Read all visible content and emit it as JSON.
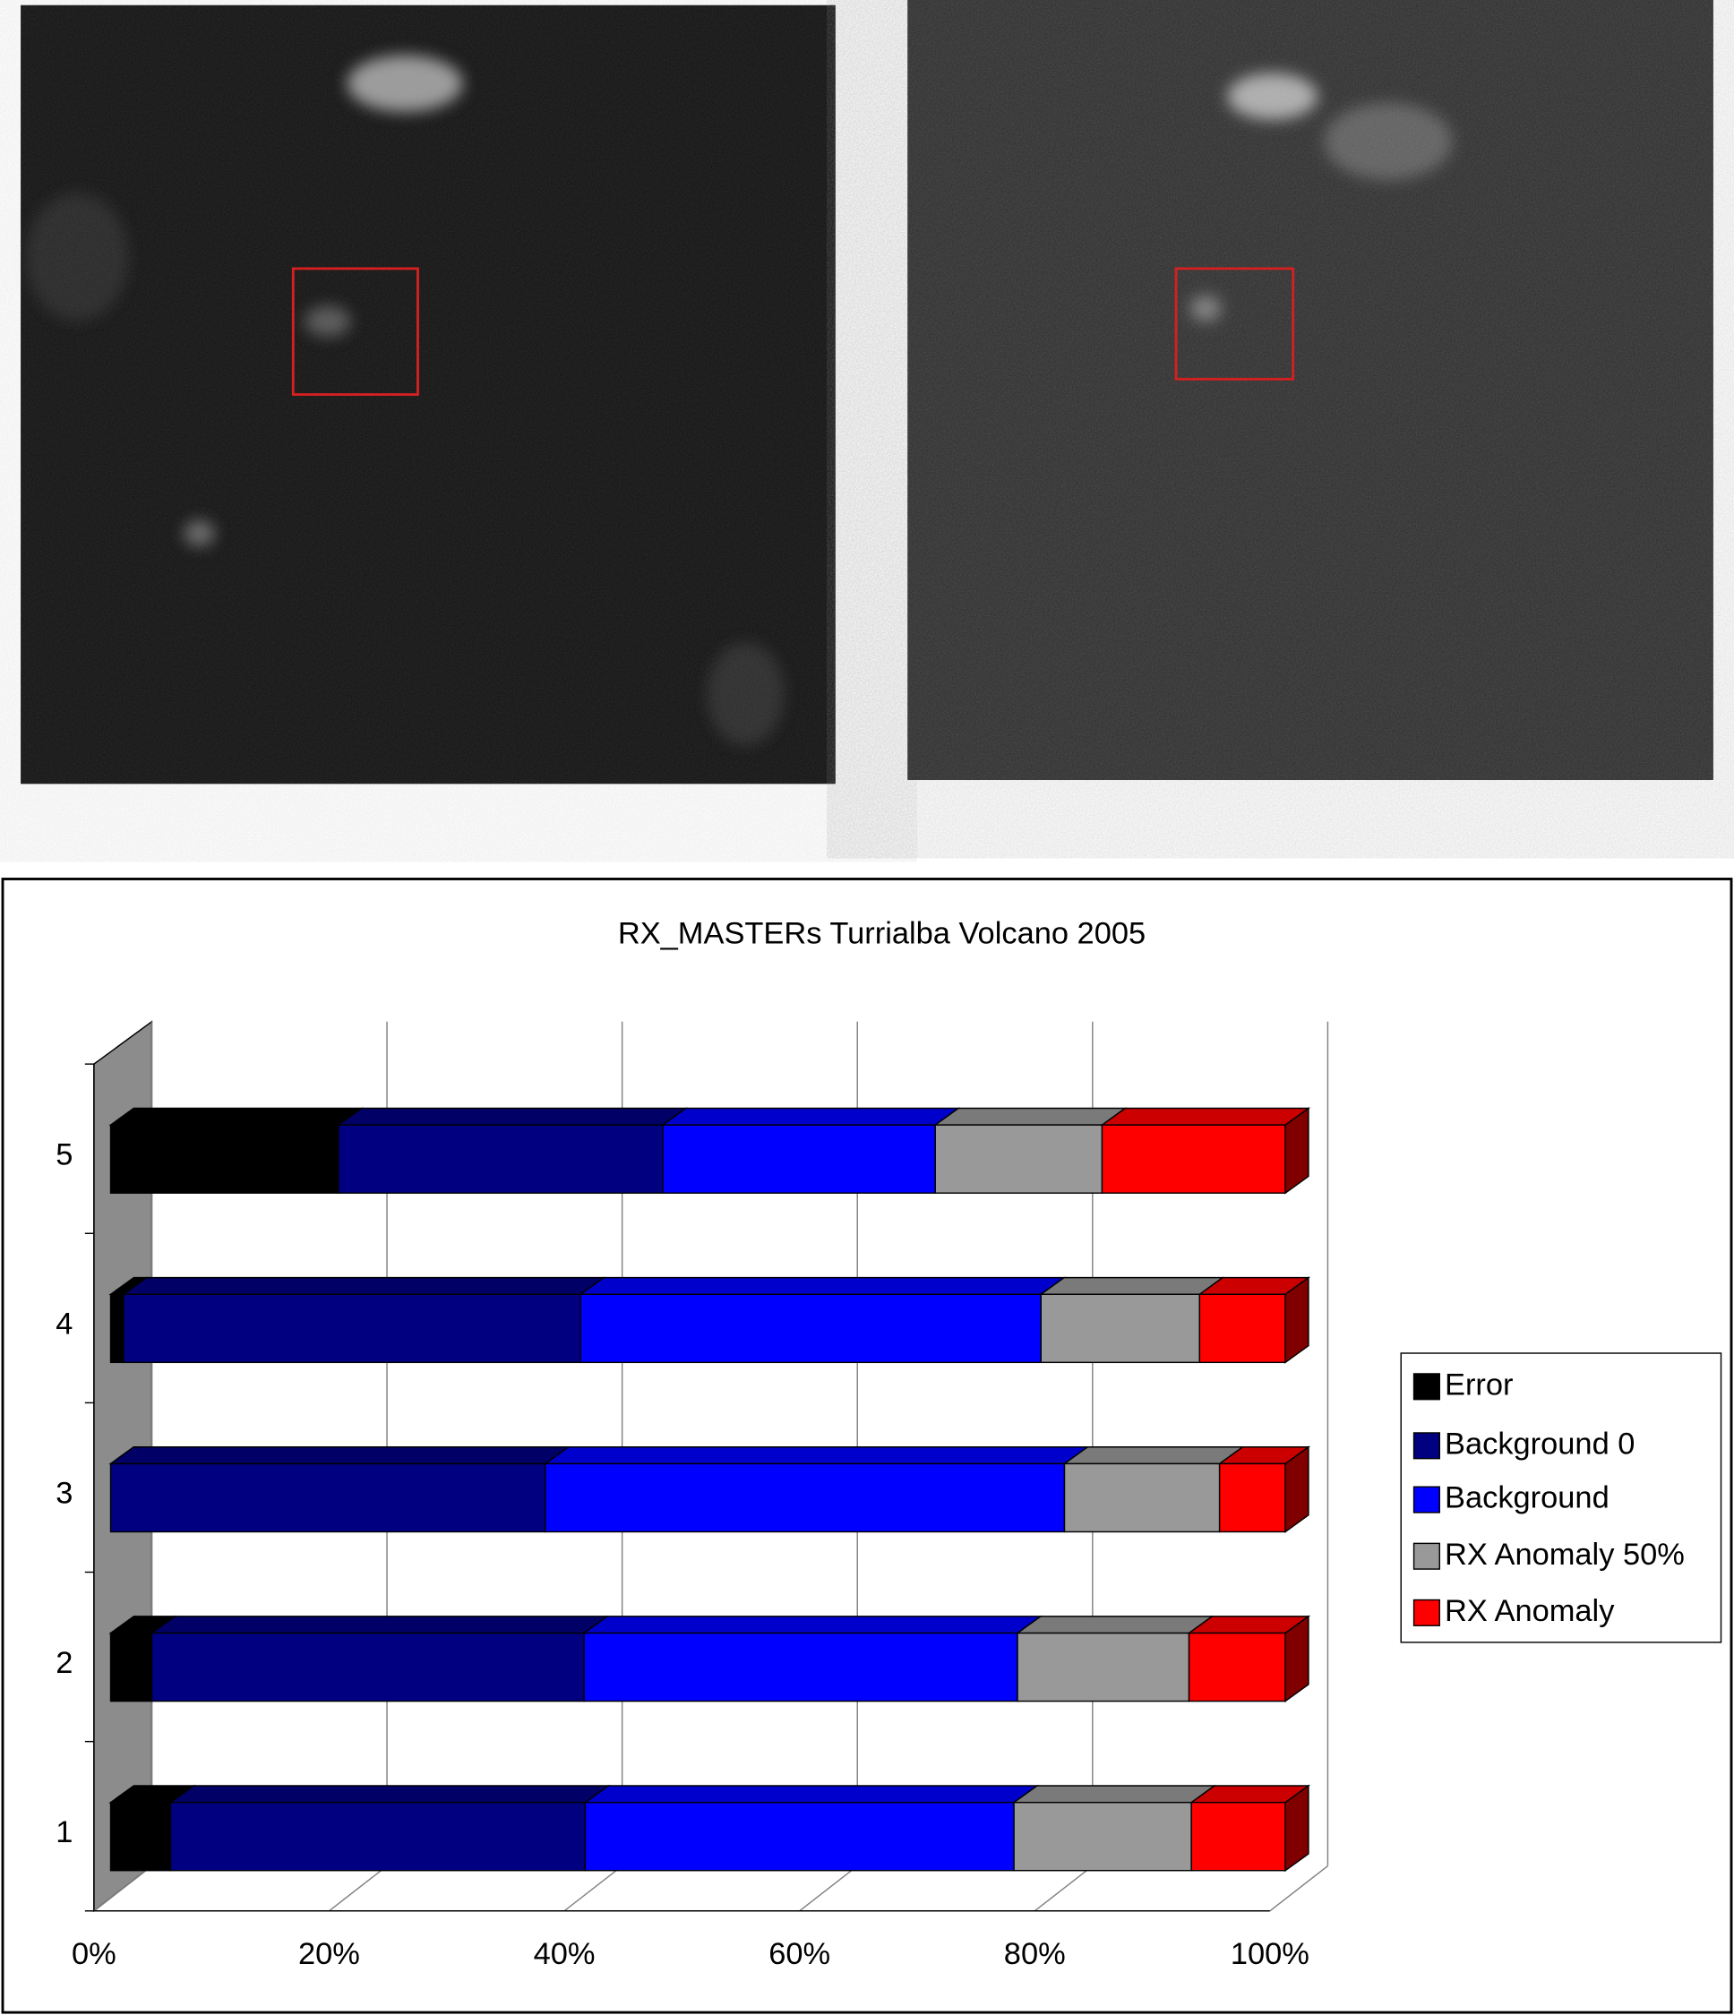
{
  "chart_data": {
    "type": "bar",
    "orientation": "horizontal",
    "stacked": true,
    "title": "RX_MASTERs Turrialba Volcano 2005",
    "categories": [
      "1",
      "2",
      "3",
      "4",
      "5"
    ],
    "series": [
      {
        "name": "Error",
        "color": "#000000",
        "values": [
          5.1,
          3.5,
          0,
          1.1,
          19.4
        ]
      },
      {
        "name": "Background 0",
        "color": "#000080",
        "values": [
          35.3,
          36.8,
          37.0,
          38.9,
          27.6
        ]
      },
      {
        "name": "Background",
        "color": "#0000ff",
        "values": [
          36.5,
          36.9,
          44.2,
          39.2,
          23.2
        ]
      },
      {
        "name": "RX Anomaly 50%",
        "color": "#999999",
        "values": [
          15.1,
          14.6,
          13.2,
          13.5,
          14.2
        ]
      },
      {
        "name": "RX Anomaly",
        "color": "#ff0000",
        "values": [
          8.0,
          8.2,
          5.6,
          7.3,
          15.6
        ]
      }
    ],
    "xlim": [
      0,
      100
    ],
    "xticks": [
      {
        "value": 0,
        "label": "0%"
      },
      {
        "value": 20,
        "label": "20%"
      },
      {
        "value": 40,
        "label": "40%"
      },
      {
        "value": 60,
        "label": "60%"
      },
      {
        "value": 80,
        "label": "80%"
      },
      {
        "value": 100,
        "label": "100%"
      }
    ],
    "grid": true,
    "legend": "right"
  }
}
